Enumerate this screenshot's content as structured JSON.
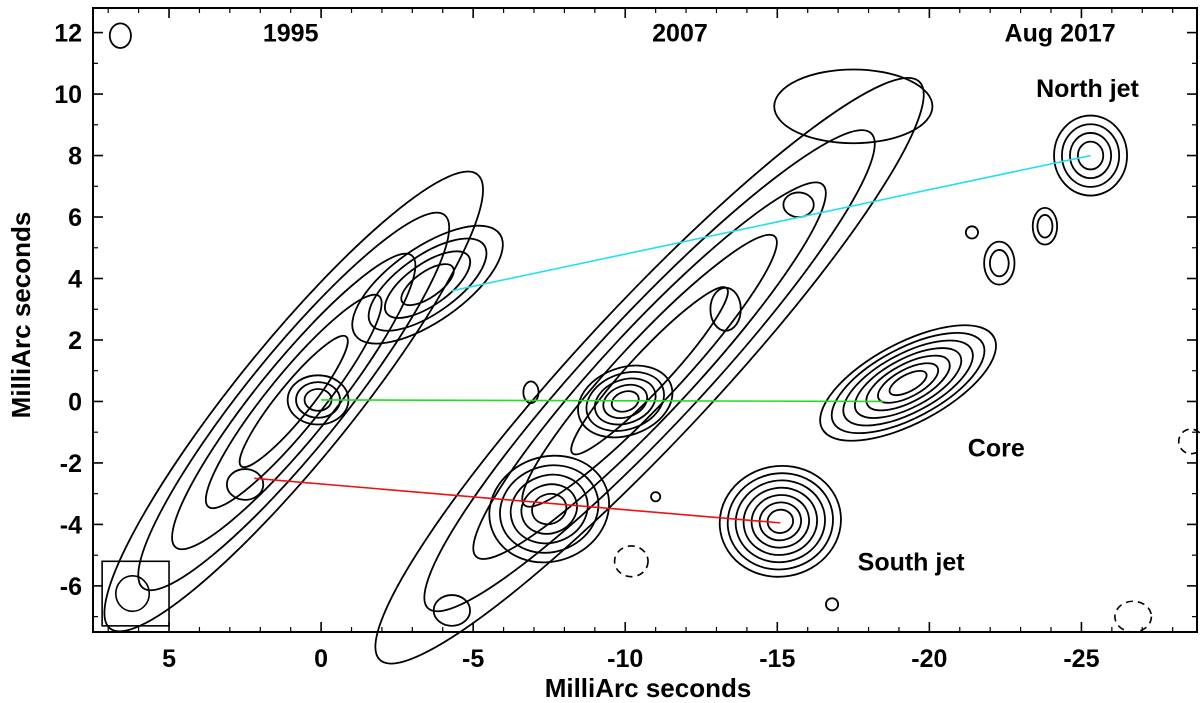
{
  "chart_data": {
    "type": "contour",
    "title": "",
    "xlabel": "MilliArc seconds",
    "ylabel": "MilliArc seconds",
    "xlim": [
      7.5,
      -28.8
    ],
    "ylim": [
      -7.5,
      12.8
    ],
    "xticks": [
      5,
      0,
      -5,
      -10,
      -15,
      -20,
      -25
    ],
    "yticks": [
      12,
      10,
      8,
      6,
      4,
      2,
      0,
      -2,
      -4,
      -6
    ],
    "epoch_labels": [
      {
        "text": "1995",
        "x": 1.0,
        "y": 12.0
      },
      {
        "text": "2007",
        "x": -11.8,
        "y": 12.0
      },
      {
        "text": "Aug 2017",
        "x": -24.3,
        "y": 12.0
      }
    ],
    "feature_labels": [
      {
        "text": "North jet",
        "x": -25.2,
        "y": 10.2
      },
      {
        "text": "Core",
        "x": -22.2,
        "y": -1.5
      },
      {
        "text": "South jet",
        "x": -19.4,
        "y": -5.2
      }
    ],
    "motion_lines": [
      {
        "name": "North jet",
        "color": "#22e0f0",
        "from": [
          -4.3,
          3.6
        ],
        "to": [
          -25.3,
          8.0
        ]
      },
      {
        "name": "Core",
        "color": "#22dd22",
        "from": [
          0.0,
          0.05
        ],
        "to": [
          -18.5,
          0.0
        ]
      },
      {
        "name": "South jet",
        "color": "#ee1111",
        "from": [
          2.2,
          -2.5
        ],
        "to": [
          -15.1,
          -3.95
        ]
      }
    ],
    "beam": {
      "x": 6.2,
      "y": -6.25,
      "radius": 0.55
    },
    "beam_box": [
      {
        "x": 7.2,
        "y": -7.3
      },
      {
        "x": 5.0,
        "y": -5.2
      }
    ],
    "components": [
      {
        "name": "1995 jet envelope",
        "x": 0.9,
        "y": 0.0,
        "rx": 9.6,
        "ry": 1.9,
        "angle_deg": 51,
        "levels": 5
      },
      {
        "name": "1995 northern knot",
        "x": -3.5,
        "y": 3.8,
        "rx": 2.9,
        "ry": 1.2,
        "angle_deg": 35,
        "levels": 4
      },
      {
        "name": "1995 core",
        "x": 0.1,
        "y": 0.05,
        "rx": 1.0,
        "ry": 0.8,
        "angle_deg": 0,
        "levels": 3
      },
      {
        "name": "1995 southern knot",
        "x": 2.5,
        "y": -2.7,
        "rx": 0.6,
        "ry": 0.5,
        "angle_deg": 0,
        "levels": 1
      },
      {
        "name": "2007 jet envelope",
        "x": -10.8,
        "y": 1.0,
        "rx": 13.0,
        "ry": 2.2,
        "angle_deg": 47,
        "levels": 5
      },
      {
        "name": "2007 core",
        "x": -10.0,
        "y": 0.0,
        "rx": 1.6,
        "ry": 1.1,
        "angle_deg": 20,
        "levels": 5
      },
      {
        "name": "2007 southern knot",
        "x": -7.5,
        "y": -3.5,
        "rx": 2.0,
        "ry": 1.7,
        "angle_deg": 20,
        "levels": 5
      },
      {
        "name": "2007 northern knot",
        "x": -15.7,
        "y": 6.4,
        "rx": 0.5,
        "ry": 0.4,
        "angle_deg": 0,
        "levels": 1
      },
      {
        "name": "2007 knot",
        "x": -13.3,
        "y": 3.0,
        "rx": 0.5,
        "ry": 0.7,
        "angle_deg": 0,
        "levels": 1
      },
      {
        "name": "2007 upper extension",
        "x": -17.5,
        "y": 9.6,
        "rx": 2.6,
        "ry": 1.2,
        "angle_deg": 0,
        "levels": 1
      },
      {
        "name": "2017 core",
        "x": -19.3,
        "y": 0.6,
        "rx": 3.2,
        "ry": 1.3,
        "angle_deg": 28,
        "levels": 7
      },
      {
        "name": "2017 south jet",
        "x": -15.1,
        "y": -3.9,
        "rx": 2.0,
        "ry": 1.8,
        "angle_deg": 10,
        "levels": 7
      },
      {
        "name": "2017 north jet",
        "x": -25.3,
        "y": 8.0,
        "rx": 1.2,
        "ry": 1.3,
        "angle_deg": 0,
        "levels": 4
      },
      {
        "name": "2017 small blob 1",
        "x": -22.3,
        "y": 4.5,
        "rx": 0.5,
        "ry": 0.7,
        "angle_deg": 0,
        "levels": 2
      },
      {
        "name": "2017 small blob 2",
        "x": -23.8,
        "y": 5.7,
        "rx": 0.4,
        "ry": 0.6,
        "angle_deg": 0,
        "levels": 2
      },
      {
        "name": "2017 small blob 3",
        "x": -21.4,
        "y": 5.5,
        "rx": 0.2,
        "ry": 0.2,
        "angle_deg": 0,
        "levels": 1
      },
      {
        "name": "noise blob",
        "x": -6.9,
        "y": 0.3,
        "rx": 0.25,
        "ry": 0.35,
        "angle_deg": 0,
        "levels": 1
      },
      {
        "name": "noise blob",
        "x": -4.3,
        "y": -6.8,
        "rx": 0.6,
        "ry": 0.5,
        "angle_deg": 0,
        "levels": 1
      },
      {
        "name": "noise blob",
        "x": -16.8,
        "y": -6.6,
        "rx": 0.2,
        "ry": 0.2,
        "angle_deg": 0,
        "levels": 1
      },
      {
        "name": "noise blob",
        "x": 6.6,
        "y": 11.9,
        "rx": 0.35,
        "ry": 0.4,
        "angle_deg": 0,
        "levels": 1
      },
      {
        "name": "noise blob",
        "x": -11.0,
        "y": -3.1,
        "rx": 0.15,
        "ry": 0.15,
        "angle_deg": 0,
        "levels": 1
      }
    ],
    "negative_contours": [
      {
        "name": "negative contour",
        "x": -10.2,
        "y": -5.2,
        "rx": 0.55,
        "ry": 0.5
      },
      {
        "name": "negative contour",
        "x": -26.7,
        "y": -7.0,
        "rx": 0.6,
        "ry": 0.5
      },
      {
        "name": "negative contour",
        "x": -28.6,
        "y": -1.3,
        "rx": 0.4,
        "ry": 0.4
      }
    ]
  }
}
